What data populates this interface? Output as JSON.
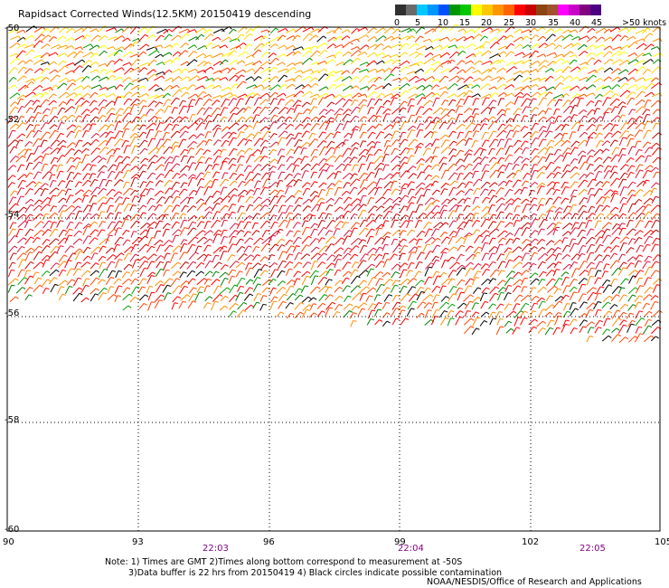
{
  "title": "Rapidsact Corrected Winds(12.5KM) 20150419 descending",
  "colorbar": {
    "colors": [
      "#303030",
      "#6a6a6a",
      "#00c8ff",
      "#0096ff",
      "#0050ff",
      "#009600",
      "#00c800",
      "#ffff00",
      "#ffc800",
      "#ff9600",
      "#ff6400",
      "#ff0000",
      "#c80000",
      "#8b4513",
      "#a0522d",
      "#ff00ff",
      "#c800c8",
      "#800080",
      "#4b0082"
    ],
    "labels": [
      "0",
      "5",
      "10",
      "15",
      "20",
      "25",
      "30",
      "35",
      "40",
      "45",
      ">50 knots"
    ]
  },
  "axes": {
    "lat_labels": [
      "-50",
      "-52",
      "-54",
      "-56",
      "-58",
      "-60"
    ],
    "lon_labels": [
      "90",
      "93",
      "96",
      "99",
      "102",
      "105"
    ]
  },
  "times": [
    "22:03",
    "22:04",
    "22:05"
  ],
  "notes": [
    "Note: 1) Times are GMT 2)Times along bottom correspond to measurement at -50S",
    "3)Data buffer is 22 hrs from 20150419 4) Black circles indicate possible contamination"
  ],
  "credit": "NOAA/NESDIS/Office of Research and Applications",
  "barb_colors": {
    "light": [
      "#ffff00",
      "#ffd700",
      "#ffa500"
    ],
    "moderate": [
      "#ff8c00",
      "#ff4500",
      "#ff0000"
    ],
    "strong": [
      "#dc143c",
      "#c80000",
      "#ff0000"
    ],
    "calm": [
      "#008000",
      "#00a000",
      "#000000"
    ]
  }
}
